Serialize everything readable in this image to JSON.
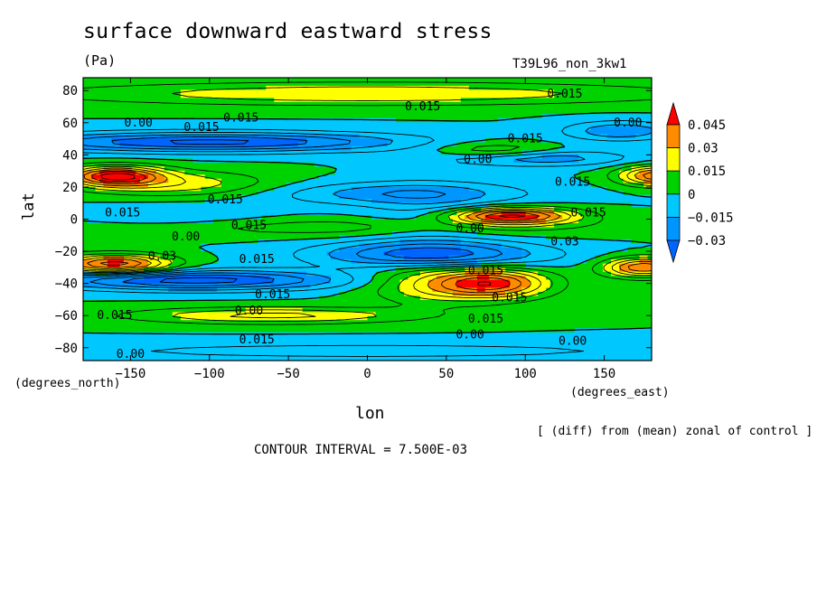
{
  "chart_data": {
    "type": "heatmap",
    "title": "surface downward eastward stress",
    "units": "(Pa)",
    "run_label": "T39L96_non_3kw1",
    "xlabel": "lon",
    "ylabel": "lat",
    "x_units": "(degrees_east)",
    "y_units": "(degrees_north)",
    "xlim": [
      -180,
      180
    ],
    "ylim": [
      -88,
      88
    ],
    "x_ticks": [
      -150,
      -100,
      -50,
      0,
      50,
      100,
      150
    ],
    "y_ticks": [
      80,
      60,
      40,
      20,
      0,
      -20,
      -40,
      -60,
      -80
    ],
    "note": "[ (diff) from (mean) zonal of control ]",
    "contour_interval_text": "CONTOUR INTERVAL = 7.500E-03",
    "contour_interval": 0.0075,
    "colorbar": {
      "labels": [
        "0.045",
        "0.03",
        "0.015",
        "0",
        "−0.015",
        "−0.03"
      ],
      "bands": [
        {
          "lower": 0.03,
          "upper": 0.045,
          "color": "#ff8c00"
        },
        {
          "lower": 0.015,
          "upper": 0.03,
          "color": "#ffff00"
        },
        {
          "lower": 0.0,
          "upper": 0.015,
          "color": "#00d200"
        },
        {
          "lower": -0.015,
          "upper": 0.0,
          "color": "#00c8ff"
        },
        {
          "lower": -0.03,
          "upper": -0.015,
          "color": "#0096ff"
        }
      ],
      "over_color": "#ff0000",
      "under_color": "#0064ff"
    },
    "contour_labels": [
      {
        "text": "0.015",
        "lon": 125,
        "lat": 78
      },
      {
        "text": "0.015",
        "lon": 35,
        "lat": 70
      },
      {
        "text": "0.015",
        "lon": -80,
        "lat": 63
      },
      {
        "text": "0.00",
        "lon": -145,
        "lat": 60
      },
      {
        "text": "0.00",
        "lon": 165,
        "lat": 60
      },
      {
        "text": "0.015",
        "lon": -105,
        "lat": 57
      },
      {
        "text": "0.015",
        "lon": 100,
        "lat": 50
      },
      {
        "text": "0.00",
        "lon": 70,
        "lat": 37
      },
      {
        "text": "0.015",
        "lon": 130,
        "lat": 23
      },
      {
        "text": "0.015",
        "lon": -90,
        "lat": 12
      },
      {
        "text": "0.015",
        "lon": -155,
        "lat": 4
      },
      {
        "text": "0.015",
        "lon": 140,
        "lat": 4
      },
      {
        "text": "0.015",
        "lon": -75,
        "lat": -4
      },
      {
        "text": "0.00",
        "lon": -115,
        "lat": -11
      },
      {
        "text": "0.00",
        "lon": 65,
        "lat": -6
      },
      {
        "text": "0.03",
        "lon": 125,
        "lat": -14
      },
      {
        "text": "0.03",
        "lon": -130,
        "lat": -23
      },
      {
        "text": "0.015",
        "lon": -70,
        "lat": -25
      },
      {
        "text": "0.015",
        "lon": 75,
        "lat": -32
      },
      {
        "text": "0.015",
        "lon": 90,
        "lat": -49
      },
      {
        "text": "0.015",
        "lon": -60,
        "lat": -47
      },
      {
        "text": "0.00",
        "lon": -75,
        "lat": -57
      },
      {
        "text": "0.015",
        "lon": -160,
        "lat": -60
      },
      {
        "text": "0.015",
        "lon": 75,
        "lat": -62
      },
      {
        "text": "0.00",
        "lon": 65,
        "lat": -72
      },
      {
        "text": "0.015",
        "lon": -70,
        "lat": -75
      },
      {
        "text": "0.00",
        "lon": 130,
        "lat": -76
      },
      {
        "text": "0.00",
        "lon": -150,
        "lat": -84
      }
    ]
  }
}
